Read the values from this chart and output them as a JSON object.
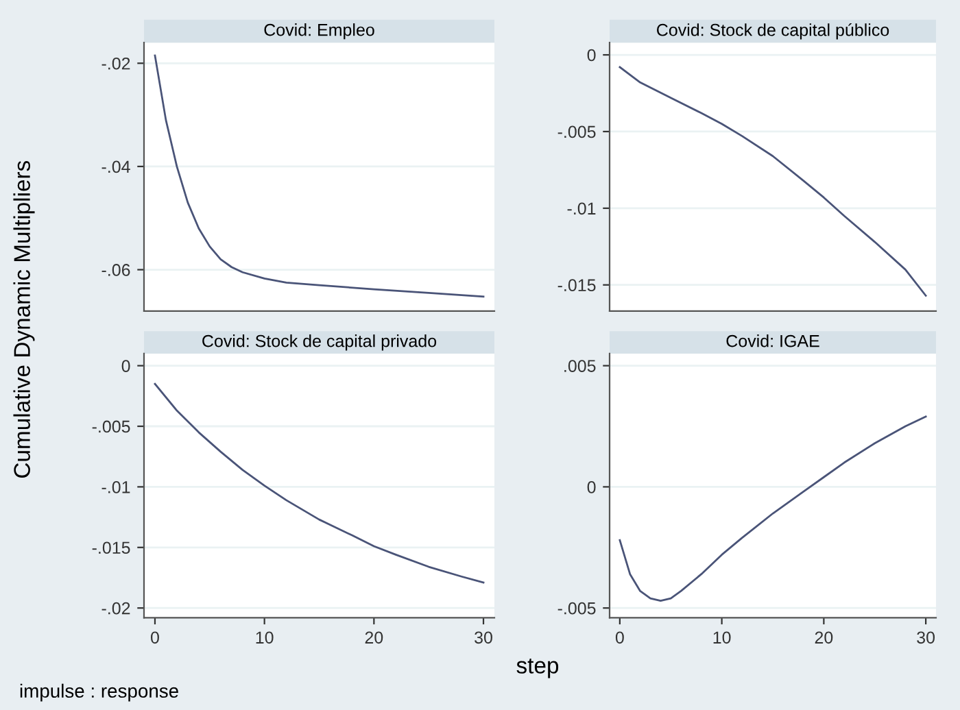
{
  "chart_data": [
    {
      "type": "line",
      "title": "Covid: Empleo",
      "ylabel": "Cumulative Dynamic Multipliers",
      "x": [
        0,
        1,
        2,
        3,
        4,
        5,
        6,
        7,
        8,
        10,
        12,
        15,
        20,
        25,
        30
      ],
      "series": [
        {
          "color": "#4a5478",
          "values": [
            -0.0185,
            -0.031,
            -0.04,
            -0.047,
            -0.052,
            -0.0555,
            -0.058,
            -0.0595,
            -0.0605,
            -0.0617,
            -0.0625,
            -0.063,
            -0.0638,
            -0.0645,
            -0.0652
          ]
        }
      ],
      "xlim": [
        -1,
        31
      ],
      "ylim": [
        -0.068,
        -0.016
      ],
      "yticks": [
        {
          "value": -0.06,
          "label": "-.06"
        },
        {
          "value": -0.04,
          "label": "-.04"
        },
        {
          "value": -0.02,
          "label": "-.02"
        }
      ],
      "grid": "y",
      "tick_labels": "y"
    },
    {
      "type": "line",
      "title": "Covid: Stock de capital público",
      "x": [
        0,
        2,
        5,
        8,
        10,
        12,
        15,
        18,
        20,
        22,
        25,
        28,
        30
      ],
      "series": [
        {
          "color": "#4a5478",
          "values": [
            -0.0008,
            -0.0018,
            -0.0028,
            -0.0038,
            -0.0045,
            -0.0053,
            -0.0066,
            -0.0082,
            -0.0093,
            -0.0105,
            -0.0122,
            -0.014,
            -0.0157
          ]
        }
      ],
      "xlim": [
        -1,
        31
      ],
      "ylim": [
        -0.0167,
        0.0008
      ],
      "yticks": [
        {
          "value": -0.015,
          "label": "-.015"
        },
        {
          "value": -0.01,
          "label": "-.01"
        },
        {
          "value": -0.005,
          "label": "-.005"
        },
        0
      ],
      "grid": "y",
      "tick_labels": "y"
    },
    {
      "type": "line",
      "title": "Covid: Stock de capital privado",
      "xlabel": "step",
      "annotations": [
        "impulse : response"
      ],
      "x": [
        0,
        2,
        4,
        6,
        8,
        10,
        12,
        15,
        18,
        20,
        22,
        25,
        28,
        30
      ],
      "series": [
        {
          "color": "#4a5478",
          "values": [
            -0.0015,
            -0.0037,
            -0.0055,
            -0.0071,
            -0.0086,
            -0.0099,
            -0.0111,
            -0.0127,
            -0.014,
            -0.0149,
            -0.0156,
            -0.0166,
            -0.0174,
            -0.0179
          ]
        }
      ],
      "xlim": [
        -1,
        31
      ],
      "ylim": [
        -0.0208,
        0.001
      ],
      "xticks": [
        0,
        10,
        20,
        30
      ],
      "yticks": [
        {
          "value": -0.02,
          "label": "-.02"
        },
        {
          "value": -0.015,
          "label": "-.015"
        },
        {
          "value": -0.01,
          "label": "-.01"
        },
        {
          "value": -0.005,
          "label": "-.005"
        },
        0
      ],
      "grid": "y"
    },
    {
      "type": "line",
      "title": "Covid: IGAE",
      "x": [
        0,
        1,
        2,
        3,
        4,
        5,
        6,
        8,
        10,
        12,
        15,
        18,
        20,
        22,
        25,
        28,
        30
      ],
      "series": [
        {
          "color": "#4a5478",
          "values": [
            -0.0022,
            -0.0036,
            -0.0043,
            -0.0046,
            -0.0047,
            -0.0046,
            -0.0043,
            -0.0036,
            -0.0028,
            -0.0021,
            -0.0011,
            -0.0002,
            0.0004,
            0.001,
            0.0018,
            0.0025,
            0.0029
          ]
        }
      ],
      "xlim": [
        -1,
        31
      ],
      "ylim": [
        -0.0054,
        0.0055
      ],
      "xticks": [
        0,
        10,
        20,
        30
      ],
      "yticks": [
        {
          "value": -0.005,
          "label": "-.005"
        },
        0,
        {
          "value": 0.005,
          "label": ".005"
        }
      ],
      "grid": "y"
    }
  ]
}
